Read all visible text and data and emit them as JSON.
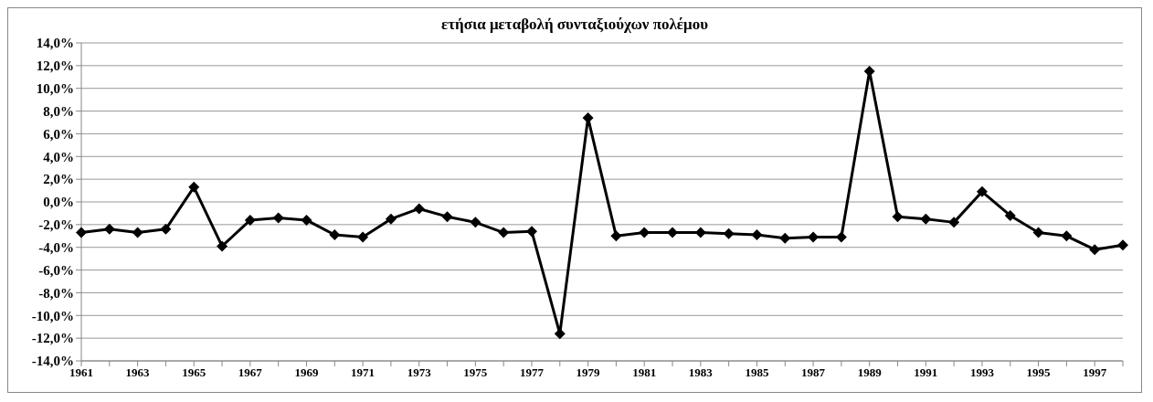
{
  "chart_data": {
    "type": "line",
    "title": "ετήσια μεταβολή συνταξιούχων πολέμου",
    "categories": [
      "1961",
      null,
      "1963",
      null,
      "1965",
      null,
      "1967",
      null,
      "1969",
      null,
      "1971",
      null,
      "1973",
      null,
      "1975",
      null,
      "1977",
      null,
      "1979",
      null,
      "1981",
      null,
      "1983",
      null,
      "1985",
      null,
      "1987",
      null,
      "1989",
      null,
      "1991",
      null,
      "1993",
      null,
      "1995",
      null,
      "1997",
      null
    ],
    "series": [
      {
        "color": "#000000",
        "values": [
          -2.7,
          -2.4,
          -2.7,
          -2.4,
          1.3,
          -3.9,
          -1.6,
          -1.4,
          -1.6,
          -2.9,
          -3.1,
          -1.5,
          -0.6,
          -1.3,
          -1.8,
          -2.7,
          -2.6,
          -11.6,
          7.4,
          -3.0,
          -2.7,
          -2.7,
          -2.7,
          -2.8,
          -2.9,
          -3.2,
          -3.1,
          -3.1,
          11.5,
          -1.3,
          -1.5,
          -1.8,
          0.9,
          -1.2,
          -2.7,
          -3.0,
          -4.2,
          -3.8
        ]
      }
    ],
    "ylim": [
      -14,
      14
    ],
    "yticks": [
      {
        "value": -14,
        "label": "-14,0%"
      },
      {
        "value": -12,
        "label": "-12,0%"
      },
      {
        "value": -10,
        "label": "-10,0%"
      },
      {
        "value": -8,
        "label": "-8,0%"
      },
      {
        "value": -6,
        "label": "-6,0%"
      },
      {
        "value": -4,
        "label": "-4,0%"
      },
      {
        "value": -2,
        "label": "-2,0%"
      },
      {
        "value": 0,
        "label": "0,0%"
      },
      {
        "value": 2,
        "label": "2,0%"
      },
      {
        "value": 4,
        "label": "4,0%"
      },
      {
        "value": 6,
        "label": "6,0%"
      },
      {
        "value": 8,
        "label": "8,0%"
      },
      {
        "value": 10,
        "label": "10,0%"
      },
      {
        "value": 12,
        "label": "12,0%"
      },
      {
        "value": 14,
        "label": "14,0%"
      }
    ],
    "grid": "y",
    "marker": "diamond",
    "line_style": "solid"
  }
}
